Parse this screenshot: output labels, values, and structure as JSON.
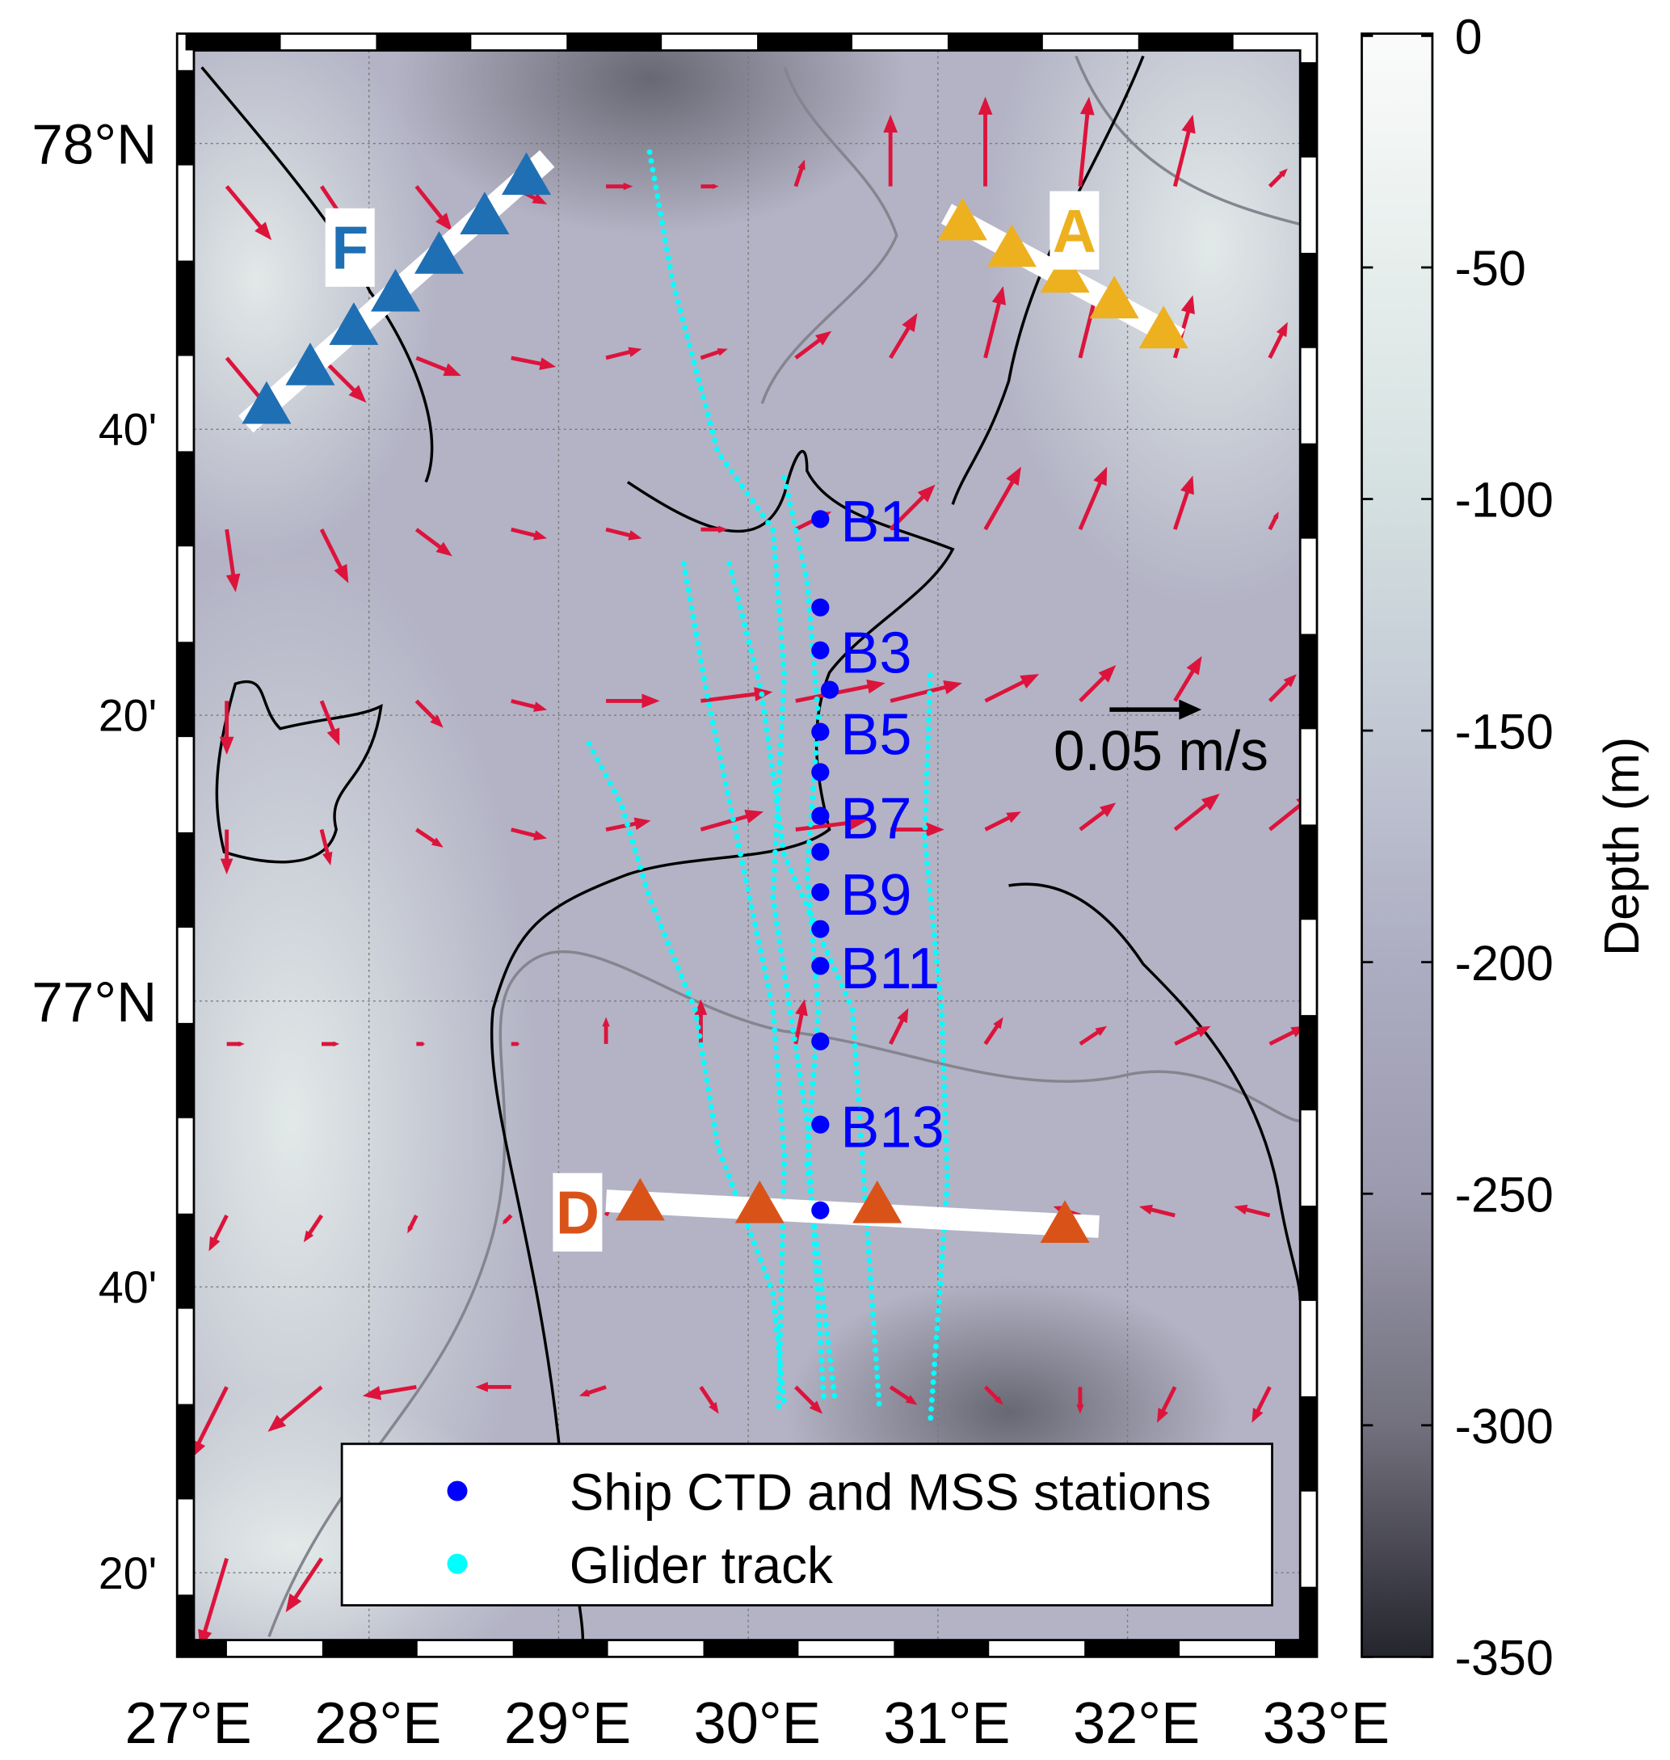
{
  "map": {
    "lon_range": [
      27,
      33
    ],
    "lat_range": [
      76.2333,
      78.1
    ],
    "lon_ticks": [
      {
        "value": 27,
        "label": "27°E"
      },
      {
        "value": 28,
        "label": "28°E"
      },
      {
        "value": 29,
        "label": "29°E"
      },
      {
        "value": 30,
        "label": "30°E"
      },
      {
        "value": 31,
        "label": "31°E"
      },
      {
        "value": 32,
        "label": "32°E"
      },
      {
        "value": 33,
        "label": "33°E"
      }
    ],
    "lat_ticks": [
      {
        "value": 78,
        "label": "78°N"
      },
      {
        "value": 77.6667,
        "label": "40'"
      },
      {
        "value": 77.3333,
        "label": "20'"
      },
      {
        "value": 77,
        "label": "77°N"
      },
      {
        "value": 76.6667,
        "label": "40'"
      },
      {
        "value": 76.3333,
        "label": "20'"
      }
    ],
    "grid": true
  },
  "colorbar": {
    "label": "Depth (m)",
    "range": [
      -350,
      0
    ],
    "ticks": [
      "0",
      "-50",
      "-100",
      "-150",
      "-200",
      "-250",
      "-300",
      "-350"
    ],
    "colors": [
      "#fbfbfb",
      "#e6eeec",
      "#d4e0e0",
      "#c2c8d4",
      "#adadc2",
      "#9c9aae",
      "#72717d",
      "#25252e"
    ]
  },
  "velocity": {
    "scale_label": "0.05 m/s",
    "scale_value_m_s": 0.05,
    "arrow_color": "#dc143c",
    "grid_lon": [
      27.25,
      27.75,
      28.25,
      28.75,
      29.25,
      29.75,
      30.25,
      30.75,
      31.25,
      31.75,
      32.25,
      32.75
    ],
    "grid_lat": [
      77.95,
      77.75,
      77.55,
      77.35,
      77.2,
      76.95,
      76.75,
      76.55,
      76.35
    ],
    "u_cm_s": [
      [
        2.5,
        2,
        2,
        2,
        1.5,
        1,
        0.5,
        0,
        0,
        0.5,
        1,
        1
      ],
      [
        2.5,
        2.5,
        2.5,
        2.5,
        2,
        1.5,
        2,
        1.5,
        1,
        1,
        1,
        1
      ],
      [
        0.5,
        1.5,
        2,
        2,
        2,
        1.5,
        2,
        2.5,
        2,
        1.5,
        1,
        0.5
      ],
      [
        0,
        1,
        1.5,
        2,
        3,
        4,
        5,
        4,
        3,
        2,
        1.5,
        1.5
      ],
      [
        0,
        0.5,
        1.5,
        2,
        2.5,
        3.5,
        4,
        3,
        2,
        2,
        2.5,
        2.5
      ],
      [
        1,
        1,
        0.5,
        0.5,
        0,
        0,
        0.5,
        1,
        1,
        1.5,
        2,
        2
      ],
      [
        -1,
        -1,
        -0.5,
        -0.5,
        0.5,
        1,
        0.5,
        0,
        -0.5,
        -1.5,
        -2,
        -2
      ],
      [
        -2,
        -3,
        -3,
        -2,
        -1.5,
        1,
        1.5,
        1.5,
        1,
        0,
        -1,
        -1
      ],
      [
        -1.5,
        -2,
        -2,
        -1,
        -1,
        0.5,
        1,
        1,
        0.5,
        0,
        -0.5,
        -0.5
      ]
    ],
    "v_cm_s": [
      [
        -3,
        -3,
        -2.5,
        -1,
        0,
        0,
        1.5,
        4,
        5,
        5,
        4,
        1
      ],
      [
        -3,
        -2.5,
        -1,
        -0.5,
        0.5,
        0.5,
        1.5,
        2.5,
        4,
        4,
        3.5,
        2
      ],
      [
        -3.5,
        -3,
        -1.5,
        -0.5,
        -0.5,
        0,
        1,
        2.5,
        3.5,
        3.5,
        3,
        1
      ],
      [
        -3,
        -2.5,
        -1.5,
        -0.5,
        0,
        0.5,
        1,
        1,
        1.5,
        2,
        2.5,
        1.5
      ],
      [
        -2.5,
        -2,
        -1,
        -0.5,
        0.5,
        1,
        0.5,
        0,
        1,
        1.5,
        2,
        2
      ],
      [
        0,
        0,
        0,
        0,
        1.5,
        2.5,
        2.5,
        2,
        1.5,
        1,
        1,
        1
      ],
      [
        -2,
        -1.5,
        -1,
        -0.5,
        1,
        1,
        0.5,
        0,
        0,
        0.5,
        0.5,
        0.5
      ],
      [
        -4,
        -2.5,
        -0.5,
        0,
        -0.5,
        -1.5,
        -1.5,
        -1,
        -1,
        -1.5,
        -2,
        -2
      ],
      [
        -5,
        -3,
        -1,
        -1,
        -1,
        -1.5,
        -2,
        -1.5,
        -1.5,
        -2,
        -2,
        -2
      ]
    ]
  },
  "glider_tracks": [
    [
      [
        29.48,
        77.99
      ],
      [
        29.6,
        77.84
      ],
      [
        29.84,
        77.64
      ],
      [
        30.13,
        77.55
      ],
      [
        30.19,
        77.38
      ],
      [
        30.13,
        77.12
      ],
      [
        30.31,
        76.86
      ],
      [
        30.4,
        76.53
      ]
    ],
    [
      [
        29.66,
        77.51
      ],
      [
        29.78,
        77.36
      ],
      [
        29.96,
        77.17
      ],
      [
        30.13,
        76.99
      ],
      [
        30.19,
        76.82
      ],
      [
        30.16,
        76.52
      ]
    ],
    [
      [
        29.16,
        77.3
      ],
      [
        29.33,
        77.23
      ],
      [
        29.48,
        77.12
      ],
      [
        29.72,
        76.99
      ],
      [
        29.84,
        76.83
      ],
      [
        30.13,
        76.66
      ],
      [
        30.19,
        76.53
      ]
    ],
    [
      [
        30.19,
        77.61
      ],
      [
        30.31,
        77.49
      ],
      [
        30.37,
        77.33
      ],
      [
        30.31,
        77.15
      ],
      [
        30.37,
        76.99
      ],
      [
        30.31,
        76.81
      ],
      [
        30.46,
        76.53
      ]
    ],
    [
      [
        30.96,
        77.38
      ],
      [
        30.93,
        77.19
      ],
      [
        31.02,
        76.99
      ],
      [
        31.05,
        76.79
      ],
      [
        30.99,
        76.6
      ],
      [
        30.96,
        76.51
      ]
    ],
    [
      [
        29.9,
        77.51
      ],
      [
        30.07,
        77.36
      ],
      [
        30.19,
        77.17
      ],
      [
        30.55,
        76.99
      ],
      [
        30.61,
        76.79
      ],
      [
        30.69,
        76.53
      ]
    ]
  ],
  "stations": [
    {
      "label": "B1",
      "lon": 30.38,
      "lat": 77.562
    },
    {
      "label": "",
      "lon": 30.38,
      "lat": 77.459
    },
    {
      "label": "B3",
      "lon": 30.38,
      "lat": 77.409
    },
    {
      "label": "",
      "lon": 30.43,
      "lat": 77.363
    },
    {
      "label": "B5",
      "lon": 30.38,
      "lat": 77.314
    },
    {
      "label": "",
      "lon": 30.38,
      "lat": 77.267
    },
    {
      "label": "B7",
      "lon": 30.38,
      "lat": 77.216
    },
    {
      "label": "",
      "lon": 30.38,
      "lat": 77.174
    },
    {
      "label": "B9",
      "lon": 30.38,
      "lat": 77.127
    },
    {
      "label": "",
      "lon": 30.38,
      "lat": 77.084
    },
    {
      "label": "B11",
      "lon": 30.38,
      "lat": 77.041
    },
    {
      "label": "",
      "lon": 30.38,
      "lat": 76.953
    },
    {
      "label": "B13",
      "lon": 30.38,
      "lat": 76.856
    },
    {
      "label": "",
      "lon": 30.38,
      "lat": 76.756
    }
  ],
  "sections": [
    {
      "label": "F",
      "color": "#1f6fb4",
      "label_pos": [
        27.9,
        77.88
      ],
      "points": [
        [
          27.46,
          77.694
        ],
        [
          27.69,
          77.739
        ],
        [
          27.92,
          77.786
        ],
        [
          28.14,
          77.825
        ],
        [
          28.37,
          77.869
        ],
        [
          28.61,
          77.915
        ],
        [
          28.83,
          77.961
        ]
      ]
    },
    {
      "label": "A",
      "color": "#edb120",
      "label_pos": [
        31.72,
        77.9
      ],
      "points": [
        [
          31.13,
          77.908
        ],
        [
          31.39,
          77.877
        ],
        [
          31.67,
          77.847
        ],
        [
          31.93,
          77.817
        ],
        [
          32.19,
          77.782
        ]
      ]
    },
    {
      "label": "D",
      "color": "#d95319",
      "label_pos": [
        29.1,
        76.755
      ],
      "points": [
        [
          29.43,
          76.765
        ],
        [
          30.06,
          76.762
        ],
        [
          30.68,
          76.762
        ],
        [
          31.67,
          76.739
        ]
      ]
    }
  ],
  "legend": {
    "items": [
      {
        "label": "Ship CTD and MSS stations",
        "color": "#0000ff"
      },
      {
        "label": "Glider track",
        "color": "#00ffff"
      }
    ]
  }
}
